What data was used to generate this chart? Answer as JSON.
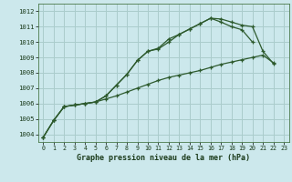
{
  "title": "Graphe pression niveau de la mer (hPa)",
  "bg_color": "#cce8ec",
  "grid_color": "#aacccc",
  "line_color": "#2d5a2d",
  "xlim": [
    -0.5,
    23.5
  ],
  "ylim": [
    1003.5,
    1012.5
  ],
  "xticks": [
    0,
    1,
    2,
    3,
    4,
    5,
    6,
    7,
    8,
    9,
    10,
    11,
    12,
    13,
    14,
    15,
    16,
    17,
    18,
    19,
    20,
    21,
    22,
    23
  ],
  "yticks": [
    1004,
    1005,
    1006,
    1007,
    1008,
    1009,
    1010,
    1011,
    1012
  ],
  "series1_x": [
    0,
    1,
    2,
    3,
    4,
    5,
    6,
    7,
    8,
    9,
    10,
    11,
    12,
    13,
    14,
    15,
    16,
    17,
    18,
    19,
    20,
    21,
    22
  ],
  "series1_y": [
    1003.8,
    1004.9,
    1005.8,
    1005.9,
    1006.0,
    1006.1,
    1006.5,
    1007.2,
    1007.9,
    1008.8,
    1009.4,
    1009.6,
    1010.2,
    1010.5,
    1010.85,
    1011.2,
    1011.55,
    1011.5,
    1011.3,
    1011.1,
    1011.0,
    1009.4,
    1008.6
  ],
  "series2_x": [
    0,
    1,
    2,
    3,
    4,
    5,
    6,
    7,
    8,
    9,
    10,
    11,
    12,
    13,
    14,
    15,
    16,
    17,
    18,
    19,
    20
  ],
  "series2_y": [
    1003.8,
    1004.9,
    1005.8,
    1005.9,
    1006.0,
    1006.1,
    1006.5,
    1007.2,
    1007.9,
    1008.8,
    1009.4,
    1009.55,
    1010.0,
    1010.5,
    1010.85,
    1011.2,
    1011.55,
    1011.3,
    1011.0,
    1010.8,
    1010.0
  ],
  "series3_x": [
    0,
    1,
    2,
    3,
    4,
    5,
    6,
    7,
    8,
    9,
    10,
    11,
    12,
    13,
    14,
    15,
    16,
    17,
    18,
    19,
    20,
    21,
    22
  ],
  "series3_y": [
    1003.8,
    1004.9,
    1005.8,
    1005.9,
    1006.0,
    1006.1,
    1006.3,
    1006.5,
    1006.75,
    1007.0,
    1007.25,
    1007.5,
    1007.7,
    1007.85,
    1008.0,
    1008.15,
    1008.35,
    1008.55,
    1008.7,
    1008.85,
    1009.0,
    1009.15,
    1008.65
  ]
}
